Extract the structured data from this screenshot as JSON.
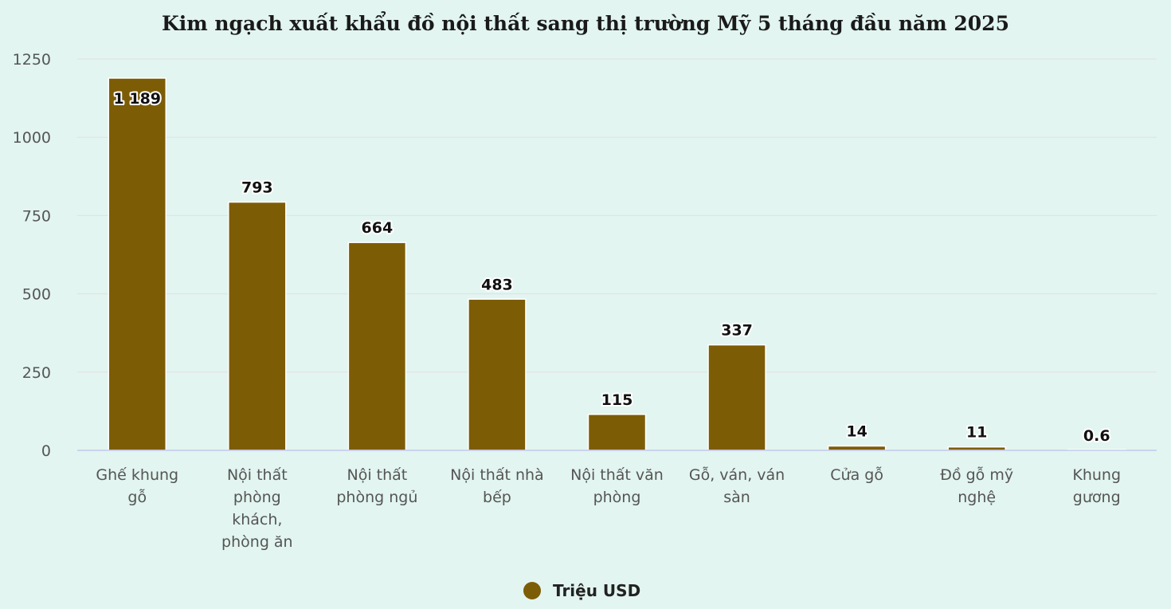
{
  "chart_data": {
    "type": "bar",
    "title": "Kim ngạch xuất khẩu đồ nội thất sang thị trường Mỹ 5 tháng đầu năm 2025",
    "xlabel": "",
    "ylabel": "",
    "ylim": [
      0,
      1250
    ],
    "yticks": [
      0,
      250,
      500,
      750,
      1000,
      1250
    ],
    "grid": true,
    "legend_position": "bottom",
    "bar_color": "#7d5c06",
    "categories": [
      [
        "Ghế khung",
        "gỗ"
      ],
      [
        "Nội thất",
        "phòng",
        "khách,",
        "phòng ăn"
      ],
      [
        "Nội thất",
        "phòng ngủ"
      ],
      [
        "Nội thất nhà",
        "bếp"
      ],
      [
        "Nội thất văn",
        "phòng"
      ],
      [
        "Gỗ, ván, ván",
        "sàn"
      ],
      [
        "Cửa gỗ"
      ],
      [
        "Đồ gỗ mỹ",
        "nghệ"
      ],
      [
        "Khung",
        "gương"
      ]
    ],
    "series": [
      {
        "name": "Triệu USD",
        "values": [
          1189,
          793,
          664,
          483,
          115,
          337,
          14,
          11,
          0.6
        ],
        "labels": [
          "1 189",
          "793",
          "664",
          "483",
          "115",
          "337",
          "14",
          "11",
          "0.6"
        ]
      }
    ]
  }
}
